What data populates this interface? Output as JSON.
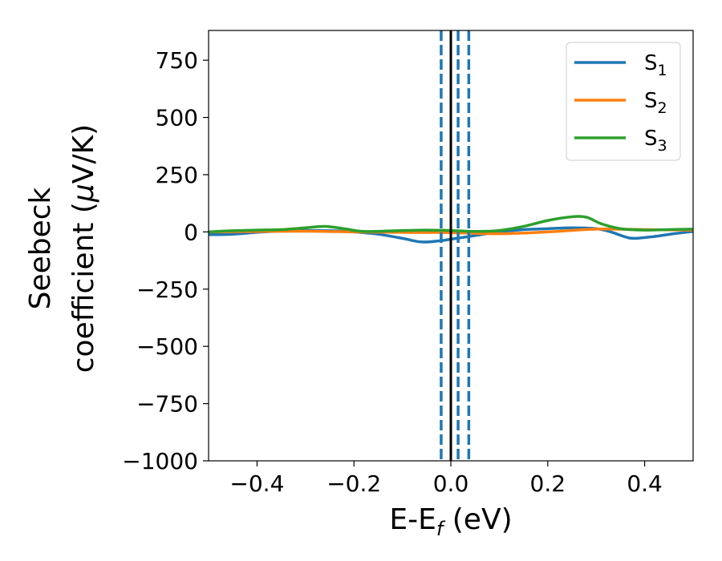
{
  "chart_data": {
    "type": "line",
    "xlabel_main": "E-E",
    "xlabel_sub": "f",
    "xlabel_unit": " (eV)",
    "ylabel_line1": "Seebeck",
    "ylabel_line2_pre": "coefficient  (",
    "ylabel_line2_mu": "μ",
    "ylabel_line2_post": "V/K)",
    "xlim": [
      -0.5,
      0.5
    ],
    "ylim": [
      -1000,
      880
    ],
    "xticks": [
      -0.4,
      -0.2,
      0.0,
      0.2,
      0.4
    ],
    "xtick_labels": [
      "−0.4",
      "−0.2",
      "0.0",
      "0.2",
      "0.4"
    ],
    "yticks": [
      -1000,
      -750,
      -500,
      -250,
      0,
      250,
      500,
      750
    ],
    "ytick_labels": [
      "−1000",
      "−750",
      "−500",
      "−250",
      "0",
      "250",
      "500",
      "750"
    ],
    "legend_position": "top-right",
    "series": [
      {
        "name": "S",
        "sub": "1",
        "color": "#1f77b4",
        "x": [
          -0.5,
          -0.45,
          -0.4,
          -0.35,
          -0.3,
          -0.25,
          -0.2,
          -0.15,
          -0.1,
          -0.06,
          -0.02,
          0.0,
          0.05,
          0.1,
          0.15,
          0.2,
          0.25,
          0.3,
          0.33,
          0.36,
          0.38,
          0.42,
          0.46,
          0.5
        ],
        "y": [
          -12,
          -10,
          -2,
          4,
          6,
          5,
          0,
          -10,
          -28,
          -44,
          -38,
          -32,
          -16,
          0,
          10,
          14,
          18,
          14,
          0,
          -22,
          -28,
          -20,
          -8,
          2
        ]
      },
      {
        "name": "S",
        "sub": "2",
        "color": "#ff7f0e",
        "x": [
          -0.5,
          -0.4,
          -0.3,
          -0.2,
          -0.1,
          0.0,
          0.1,
          0.2,
          0.3,
          0.4,
          0.5
        ],
        "y": [
          0,
          2,
          3,
          0,
          -2,
          -3,
          -8,
          0,
          12,
          10,
          8
        ]
      },
      {
        "name": "S",
        "sub": "3",
        "color": "#2ca02c",
        "x": [
          -0.5,
          -0.45,
          -0.4,
          -0.35,
          -0.3,
          -0.26,
          -0.22,
          -0.18,
          -0.1,
          -0.05,
          0.0,
          0.05,
          0.1,
          0.15,
          0.2,
          0.25,
          0.28,
          0.31,
          0.35,
          0.4,
          0.45,
          0.5
        ],
        "y": [
          0,
          5,
          8,
          10,
          18,
          24,
          14,
          2,
          6,
          8,
          6,
          2,
          6,
          24,
          50,
          66,
          64,
          36,
          14,
          8,
          10,
          12
        ]
      }
    ],
    "vlines": [
      {
        "x": 0.0,
        "color": "#000000",
        "style": "solid"
      },
      {
        "x": -0.02,
        "color": "#1f77b4",
        "style": "dashed"
      },
      {
        "x": 0.015,
        "color": "#1f77b4",
        "style": "dashed"
      },
      {
        "x": 0.037,
        "color": "#1f77b4",
        "style": "dashed"
      }
    ]
  }
}
